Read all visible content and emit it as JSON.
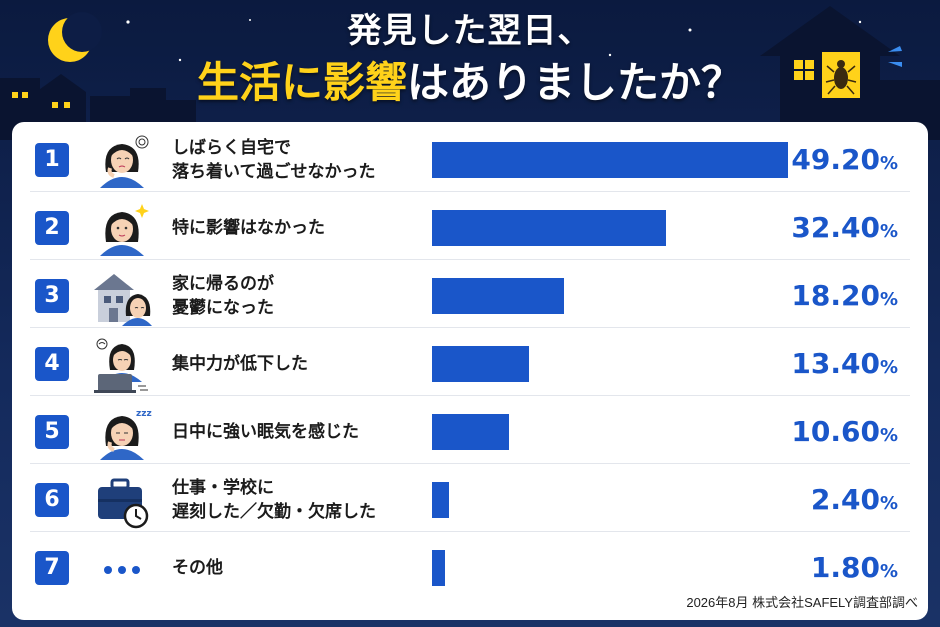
{
  "title": {
    "line1": "発見した翌日、",
    "line2_highlight": "生活に影響",
    "line2_rest": "はありましたか？"
  },
  "source": "2026年8月 株式会社SAFELY調査部調べ",
  "colors": {
    "bar": "#1a56c9",
    "highlight": "#ffd21a",
    "background": "#0b1a3f"
  },
  "chart_data": {
    "type": "bar",
    "orientation": "horizontal",
    "unit": "%",
    "xlim": [
      0,
      49.2
    ],
    "categories": [
      "しばらく自宅で落ち着いて過ごせなかった",
      "特に影響はなかった",
      "家に帰るのが憂鬱になった",
      "集中力が低下した",
      "日中に強い眠気を感じた",
      "仕事・学校に遅刻した／欠勤・欠席した",
      "その他"
    ],
    "values": [
      49.2,
      32.4,
      18.2,
      13.4,
      10.6,
      2.4,
      1.8
    ],
    "items": [
      {
        "rank": "1",
        "line1": "しばらく自宅で",
        "line2": "落ち着いて過ごせなかった",
        "value": "49.20",
        "icon": "worried-woman-icon"
      },
      {
        "rank": "2",
        "line1": "特に影響はなかった",
        "line2": "",
        "value": "32.40",
        "icon": "calm-woman-icon"
      },
      {
        "rank": "3",
        "line1": "家に帰るのが",
        "line2": "憂鬱になった",
        "value": "18.20",
        "icon": "house-woman-icon"
      },
      {
        "rank": "4",
        "line1": "集中力が低下した",
        "line2": "",
        "value": "13.40",
        "icon": "laptop-woman-icon"
      },
      {
        "rank": "5",
        "line1": "日中に強い眠気を感じた",
        "line2": "",
        "value": "10.60",
        "icon": "sleepy-woman-icon"
      },
      {
        "rank": "6",
        "line1": "仕事・学校に",
        "line2": "遅刻した／欠勤・欠席した",
        "value": "2.40",
        "icon": "briefcase-clock-icon"
      },
      {
        "rank": "7",
        "line1": "その他",
        "line2": "",
        "value": "1.80",
        "icon": "ellipsis-icon"
      }
    ],
    "pct_symbol": "%"
  }
}
